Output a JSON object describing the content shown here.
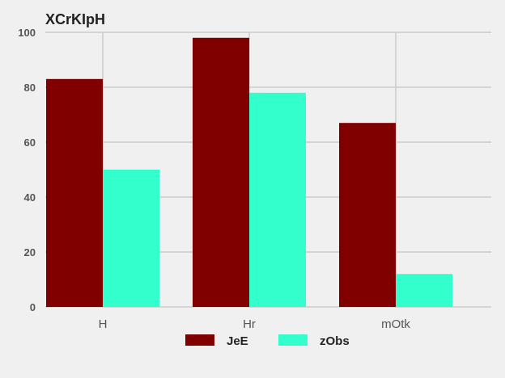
{
  "chart_data": {
    "type": "bar",
    "title": "XCrKIpH",
    "xlabel": "",
    "ylabel": "",
    "categories": [
      "H",
      "Hr",
      "mOtk"
    ],
    "series": [
      {
        "name": "JeE",
        "values": [
          83,
          98,
          67
        ],
        "color": "#800000"
      },
      {
        "name": "zObs",
        "values": [
          50,
          78,
          12
        ],
        "color": "#33ffcc"
      }
    ],
    "ylim": [
      0,
      100
    ],
    "yticks": [
      0,
      20,
      40,
      60,
      80,
      100
    ],
    "grid": true,
    "legend_position": "bottom-center",
    "background": "#f0f0f0"
  }
}
